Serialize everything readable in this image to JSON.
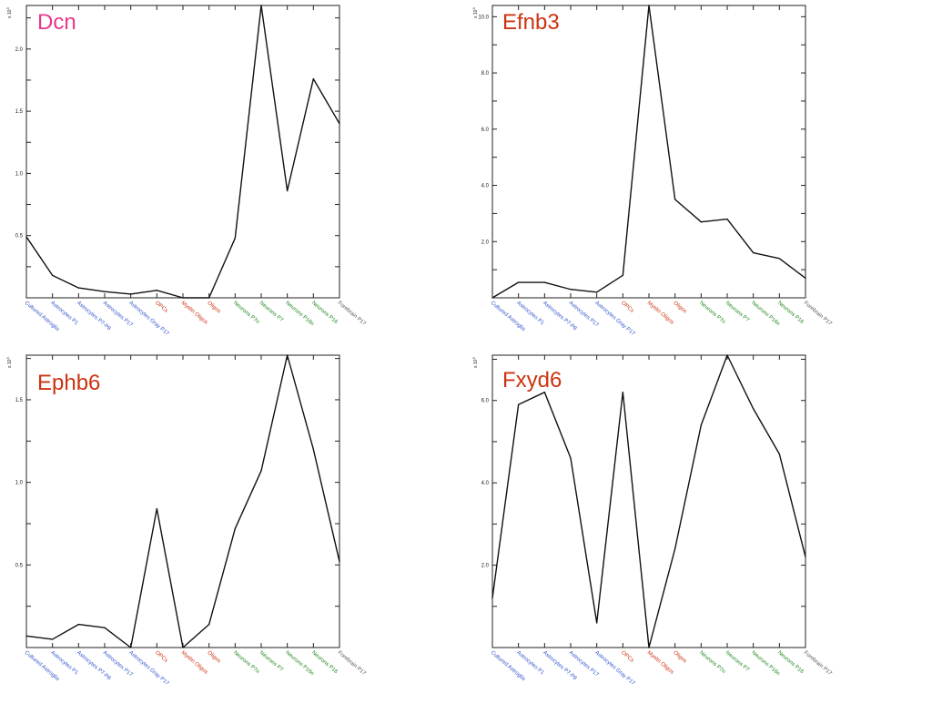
{
  "categories": [
    "Cultured Astroglia",
    "Astrocytes P1",
    "Astrocytes P7-P8",
    "Astrocytes P17",
    "Astrocytes Gray P17",
    "OPCs",
    "Myelin Oligos",
    "Oligos",
    "Neurons P7n",
    "Neurons P7",
    "Neurons P16n",
    "Neurons P16",
    "Forebrain P17"
  ],
  "category_colors": [
    "#3355cc",
    "#3355cc",
    "#3355cc",
    "#3355cc",
    "#3355cc",
    "#cc3311",
    "#cc3311",
    "#cc3311",
    "#228822",
    "#228822",
    "#228822",
    "#228822",
    "#555555"
  ],
  "chart_data": [
    {
      "type": "line",
      "title": "Dcn",
      "title_color": "#e8388a",
      "y_multiplier": "x 10^3",
      "y_ticks": [
        "0.5",
        "1.0",
        "1.5",
        "2.0"
      ],
      "y_tick_values": [
        0.5,
        1.0,
        1.5,
        2.0
      ],
      "ylim": [
        0.0,
        2.35
      ],
      "values": [
        0.49,
        0.18,
        0.08,
        0.05,
        0.03,
        0.06,
        -0.02,
        0.0,
        0.48,
        2.35,
        0.86,
        1.76,
        1.4
      ]
    },
    {
      "type": "line",
      "title": "Efnb3",
      "title_color": "#cc3311",
      "y_multiplier": "x 10^3",
      "y_ticks": [
        "2.0",
        "4.0",
        "6.0",
        "8.0",
        "10.0"
      ],
      "y_tick_values": [
        2.0,
        4.0,
        6.0,
        8.0,
        10.0
      ],
      "ylim": [
        0.0,
        10.4
      ],
      "values": [
        0.0,
        0.55,
        0.55,
        0.3,
        0.2,
        0.8,
        10.4,
        3.5,
        2.7,
        2.8,
        1.6,
        1.4,
        0.7
      ]
    },
    {
      "type": "line",
      "title": "Ephb6",
      "title_color": "#cc3311",
      "y_multiplier": "x 10^3",
      "y_ticks": [
        "0.5",
        "1.0",
        "1.5"
      ],
      "y_tick_values": [
        0.5,
        1.0,
        1.5
      ],
      "ylim": [
        0.0,
        1.77
      ],
      "values": [
        0.07,
        0.05,
        0.14,
        0.12,
        0.0,
        0.84,
        -0.02,
        0.14,
        0.72,
        1.07,
        1.77,
        1.2,
        0.52
      ]
    },
    {
      "type": "line",
      "title": "Fxyd6",
      "title_color": "#cc3311",
      "y_multiplier": "x 10^3",
      "y_ticks": [
        "2.0",
        "4.0",
        "6.0"
      ],
      "y_tick_values": [
        2.0,
        4.0,
        6.0
      ],
      "ylim": [
        0.0,
        7.1
      ],
      "values": [
        1.2,
        5.9,
        6.2,
        4.6,
        0.6,
        6.2,
        0.0,
        2.4,
        5.4,
        7.1,
        5.8,
        4.7,
        2.2
      ]
    }
  ]
}
